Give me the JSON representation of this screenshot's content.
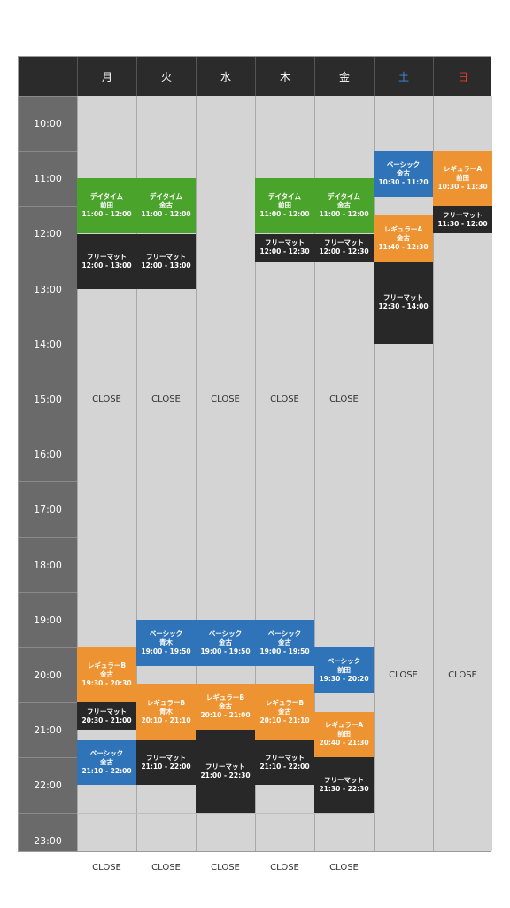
{
  "days": [
    "月",
    "火",
    "水",
    "木",
    "金",
    "土",
    "日"
  ],
  "times": [
    "10:00",
    "11:00",
    "12:00",
    "13:00",
    "14:00",
    "15:00",
    "16:00",
    "17:00",
    "18:00",
    "19:00",
    "20:00",
    "21:00",
    "22:00",
    "23:00"
  ],
  "close_label": "CLOSE",
  "colors": {
    "green": "#4aa32a",
    "black": "#282828",
    "blue": "#2f73b8",
    "orange": "#ee9331",
    "saturday": "#3d8de0",
    "sunday": "#e03b2e"
  },
  "blocks": [
    {
      "day": 0,
      "name": "デイタイム",
      "teacher": "前田",
      "time": "11:00 - 12:00",
      "color": "green"
    },
    {
      "day": 0,
      "name": "フリーマット",
      "teacher": "",
      "time": "12:00 - 13:00",
      "color": "black"
    },
    {
      "day": 0,
      "name": "レギュラーB",
      "teacher": "金古",
      "time": "19:30 - 20:30",
      "color": "orange"
    },
    {
      "day": 0,
      "name": "フリーマット",
      "teacher": "",
      "time": "20:30 - 21:00",
      "color": "black"
    },
    {
      "day": 0,
      "name": "ベーシック",
      "teacher": "金古",
      "time": "21:10 - 22:00",
      "color": "blue"
    },
    {
      "day": 1,
      "name": "デイタイム",
      "teacher": "金古",
      "time": "11:00 - 12:00",
      "color": "green"
    },
    {
      "day": 1,
      "name": "フリーマット",
      "teacher": "",
      "time": "12:00 - 13:00",
      "color": "black"
    },
    {
      "day": 1,
      "name": "ベーシック",
      "teacher": "青木",
      "time": "19:00 - 19:50",
      "color": "blue"
    },
    {
      "day": 1,
      "name": "レギュラーB",
      "teacher": "青木",
      "time": "20:10 - 21:10",
      "color": "orange"
    },
    {
      "day": 1,
      "name": "フリーマット",
      "teacher": "",
      "time": "21:10 - 22:00",
      "color": "black"
    },
    {
      "day": 2,
      "name": "ベーシック",
      "teacher": "金古",
      "time": "19:00 - 19:50",
      "color": "blue"
    },
    {
      "day": 2,
      "name": "レギュラーB",
      "teacher": "金古",
      "time": "20:10 - 21:00",
      "color": "orange"
    },
    {
      "day": 2,
      "name": "フリーマット",
      "teacher": "",
      "time": "21:00 - 22:30",
      "color": "black"
    },
    {
      "day": 3,
      "name": "デイタイム",
      "teacher": "前田",
      "time": "11:00 - 12:00",
      "color": "green"
    },
    {
      "day": 3,
      "name": "フリーマット",
      "teacher": "",
      "time": "12:00 - 12:30",
      "color": "black"
    },
    {
      "day": 3,
      "name": "ベーシック",
      "teacher": "金古",
      "time": "19:00 - 19:50",
      "color": "blue"
    },
    {
      "day": 3,
      "name": "レギュラーB",
      "teacher": "金古",
      "time": "20:10 - 21:10",
      "color": "orange"
    },
    {
      "day": 3,
      "name": "フリーマット",
      "teacher": "",
      "time": "21:10 - 22:00",
      "color": "black"
    },
    {
      "day": 4,
      "name": "デイタイム",
      "teacher": "金古",
      "time": "11:00 - 12:00",
      "color": "green"
    },
    {
      "day": 4,
      "name": "フリーマット",
      "teacher": "",
      "time": "12:00 - 12:30",
      "color": "black"
    },
    {
      "day": 4,
      "name": "ベーシック",
      "teacher": "前田",
      "time": "19:30 - 20:20",
      "color": "blue"
    },
    {
      "day": 4,
      "name": "レギュラーA",
      "teacher": "前田",
      "time": "20:40 - 21:30",
      "color": "orange"
    },
    {
      "day": 4,
      "name": "フリーマット",
      "teacher": "",
      "time": "21:30 - 22:30",
      "color": "black"
    },
    {
      "day": 5,
      "name": "ベーシック",
      "teacher": "金古",
      "time": "10:30 - 11:20",
      "color": "blue"
    },
    {
      "day": 5,
      "name": "レギュラーA",
      "teacher": "金古",
      "time": "11:40 - 12:30",
      "color": "orange"
    },
    {
      "day": 5,
      "name": "フリーマット",
      "teacher": "",
      "time": "12:30 - 14:00",
      "color": "black"
    },
    {
      "day": 6,
      "name": "レギュラーA",
      "teacher": "前田",
      "time": "10:30 - 11:30",
      "color": "orange"
    },
    {
      "day": 6,
      "name": "フリーマット",
      "teacher": "",
      "time": "11:30 - 12:00",
      "color": "black"
    }
  ],
  "close_marks": [
    {
      "day": 0,
      "hour": 15.0
    },
    {
      "day": 1,
      "hour": 15.0
    },
    {
      "day": 2,
      "hour": 15.0
    },
    {
      "day": 3,
      "hour": 15.0
    },
    {
      "day": 4,
      "hour": 15.0
    },
    {
      "day": 5,
      "hour": 20.0
    },
    {
      "day": 6,
      "hour": 20.0
    },
    {
      "day": 0,
      "hour": 23.5
    },
    {
      "day": 1,
      "hour": 23.5
    },
    {
      "day": 2,
      "hour": 23.5
    },
    {
      "day": 3,
      "hour": 23.5
    },
    {
      "day": 4,
      "hour": 23.5
    }
  ]
}
